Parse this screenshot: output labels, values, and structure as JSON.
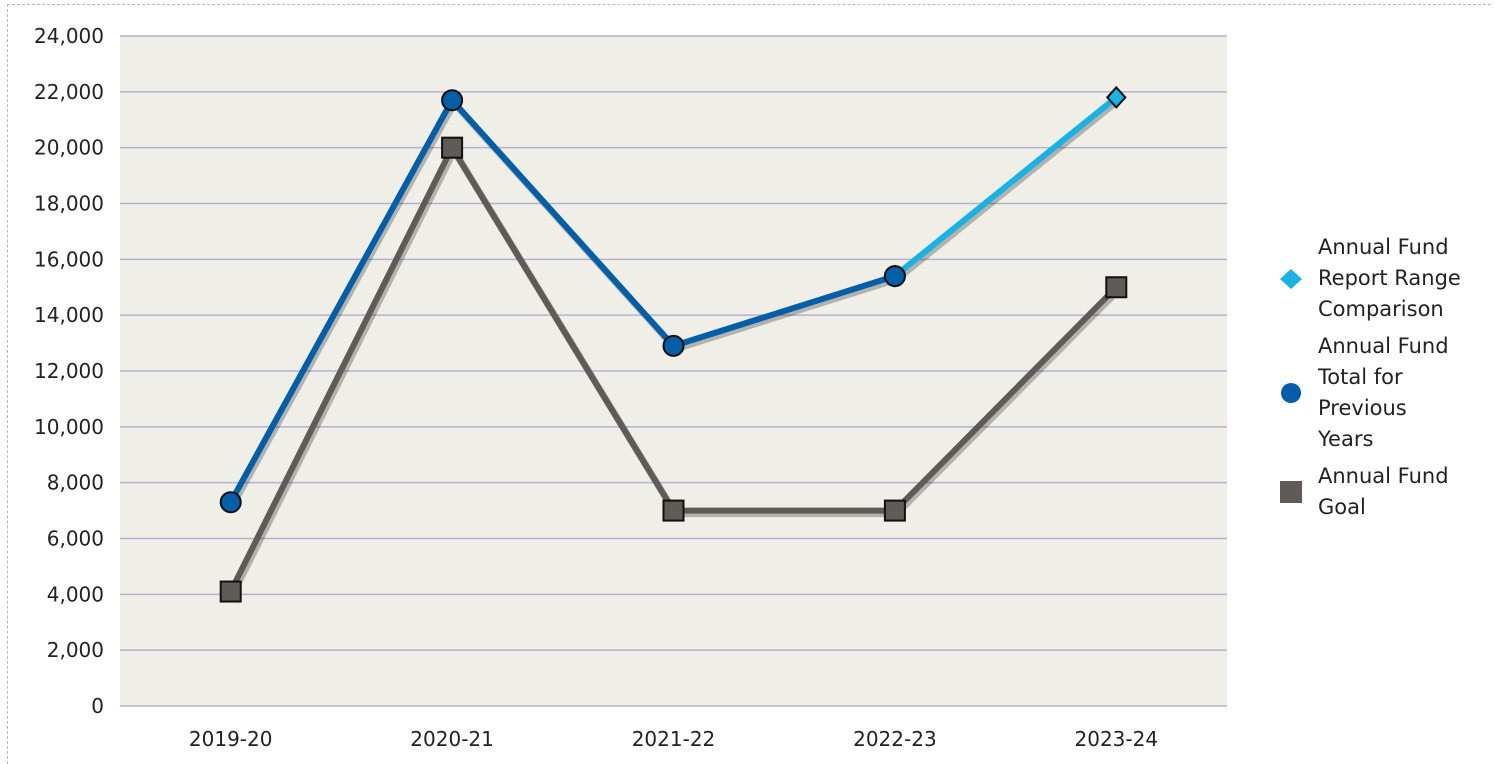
{
  "chart_data": {
    "type": "line",
    "title": "",
    "xlabel": "",
    "ylabel": "",
    "categories": [
      "2019-20",
      "2020-21",
      "2021-22",
      "2022-23",
      "2023-24"
    ],
    "ylim": [
      0,
      24000
    ],
    "yticks": [
      0,
      2000,
      4000,
      6000,
      8000,
      10000,
      12000,
      14000,
      16000,
      18000,
      20000,
      22000,
      24000
    ],
    "ytick_labels": [
      "0",
      "2,000",
      "4,000",
      "6,000",
      "8,000",
      "10,000",
      "12,000",
      "14,000",
      "16,000",
      "18,000",
      "20,000",
      "22,000",
      "24,000"
    ],
    "grid": true,
    "plot_background": "#efeee7",
    "gridline_color": "#b3b3cf",
    "legend_position": "right",
    "series": [
      {
        "name": "Annual Fund Report Range Comparison",
        "color": "#19b2e6",
        "marker": "diamond",
        "values": [
          null,
          null,
          null,
          15400,
          21800
        ]
      },
      {
        "name": "Annual Fund Total for Previous Years",
        "color": "#005fa8",
        "marker": "circle",
        "values": [
          7300,
          21700,
          12900,
          15400,
          null
        ]
      },
      {
        "name": "Annual Fund Goal",
        "color": "#615b57",
        "marker": "square",
        "values": [
          4100,
          20000,
          7000,
          7000,
          15000
        ]
      }
    ]
  },
  "legend": {
    "items": [
      {
        "lines": [
          "Annual Fund",
          "Report Range",
          "Comparison"
        ],
        "color": "#19b2e6",
        "marker": "diamond"
      },
      {
        "lines": [
          "Annual Fund",
          "Total for",
          "Previous",
          "Years"
        ],
        "color": "#005fa8",
        "marker": "circle"
      },
      {
        "lines": [
          "Annual Fund",
          "Goal"
        ],
        "color": "#615b57",
        "marker": "square"
      }
    ]
  }
}
